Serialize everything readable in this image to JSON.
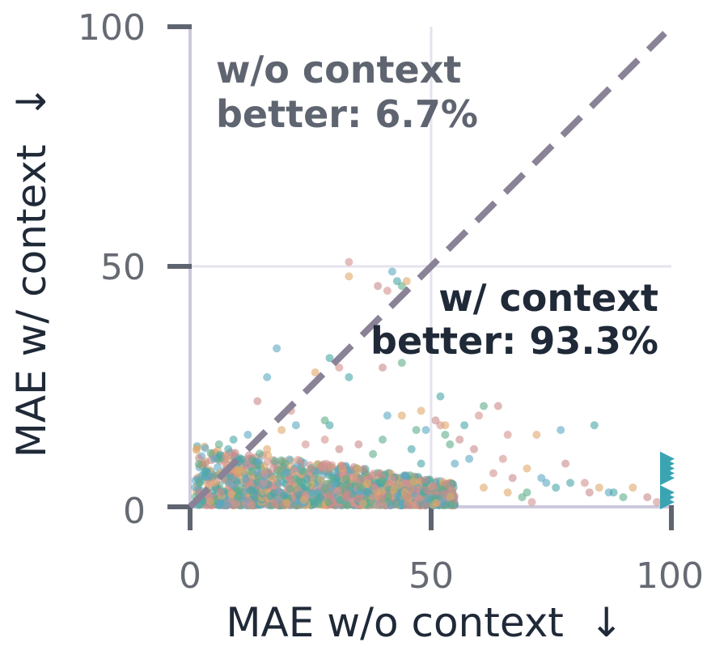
{
  "chart_data": {
    "type": "scatter",
    "xlabel": "MAE w/o context  ↓",
    "ylabel": "MAE w/ context  ↓",
    "xlim": [
      0,
      100
    ],
    "ylim": [
      0,
      100
    ],
    "xticks": [
      "0",
      "50",
      "100"
    ],
    "yticks": [
      "0",
      "50",
      "100"
    ],
    "grid": true,
    "diagonal": "y = x dashed",
    "annotations": {
      "upper_line1": "w/o context",
      "upper_line2": "better: 6.7%",
      "lower_line1": "w/ context",
      "lower_line2": "better: 93.3%"
    },
    "colors": {
      "axis": "#cdc9dc",
      "tick": "#5f6570",
      "grid": "#e6e3ef",
      "diagonal": "#8a8296",
      "upper_text": "#5f6570",
      "lower_text": "#1f2937",
      "points": [
        "#d4928f",
        "#e0a96b",
        "#5da8c4",
        "#4aa7a8",
        "#5fae8b",
        "#c98b8b"
      ],
      "overflow": "#3aa4b3"
    },
    "points": [
      [
        33,
        51
      ],
      [
        33,
        48
      ],
      [
        42,
        49
      ],
      [
        43,
        47
      ],
      [
        44,
        46
      ],
      [
        39,
        46
      ],
      [
        41,
        45
      ],
      [
        45,
        47
      ],
      [
        18,
        33
      ],
      [
        29,
        31
      ],
      [
        44,
        30
      ],
      [
        40,
        29
      ],
      [
        31,
        29
      ],
      [
        26,
        28
      ],
      [
        16,
        27
      ],
      [
        33,
        27
      ],
      [
        28,
        18
      ],
      [
        14,
        22
      ],
      [
        21,
        20
      ],
      [
        48,
        20
      ],
      [
        41,
        19
      ],
      [
        52,
        23
      ],
      [
        61,
        21
      ],
      [
        64,
        21
      ],
      [
        60,
        19
      ],
      [
        44,
        19
      ],
      [
        22,
        17
      ],
      [
        29,
        17
      ],
      [
        47,
        16
      ],
      [
        51,
        18
      ],
      [
        52,
        17
      ],
      [
        53,
        17
      ],
      [
        49,
        16
      ],
      [
        57,
        17
      ],
      [
        53,
        15
      ],
      [
        56,
        14
      ],
      [
        66,
        15
      ],
      [
        72,
        15
      ],
      [
        77,
        16
      ],
      [
        84,
        17
      ],
      [
        54,
        13
      ],
      [
        59,
        12
      ],
      [
        65,
        10
      ],
      [
        70,
        8
      ],
      [
        58,
        10
      ],
      [
        46,
        12
      ],
      [
        40,
        14
      ],
      [
        35,
        13
      ],
      [
        28,
        14
      ],
      [
        19,
        16
      ],
      [
        12,
        15
      ],
      [
        9,
        14
      ],
      [
        6,
        13
      ],
      [
        78,
        9
      ],
      [
        82,
        5
      ],
      [
        85,
        4
      ],
      [
        87,
        3
      ],
      [
        88,
        3
      ],
      [
        90,
        2
      ],
      [
        95,
        2
      ],
      [
        97,
        1
      ],
      [
        92,
        4
      ],
      [
        74,
        5
      ],
      [
        79,
        5
      ],
      [
        70,
        3
      ],
      [
        67,
        6
      ],
      [
        63,
        7
      ],
      [
        61,
        4
      ],
      [
        73,
        6
      ],
      [
        76,
        4
      ],
      [
        69,
        2
      ],
      [
        83,
        3
      ],
      [
        71,
        1
      ],
      [
        66,
        3
      ],
      [
        55,
        9
      ],
      [
        48,
        9
      ],
      [
        38,
        11
      ],
      [
        31,
        12
      ],
      [
        24,
        13
      ],
      [
        16,
        12
      ],
      [
        5,
        10
      ],
      [
        3,
        7
      ],
      [
        2,
        5
      ],
      [
        2,
        3
      ],
      [
        4,
        2
      ]
    ],
    "overflow_markers": [
      10,
      9,
      8,
      7,
      6,
      3,
      2,
      1
    ],
    "dense_cluster": {
      "x_min": 0,
      "x_max": 55,
      "y_min": 0,
      "y_max": 13,
      "count": 1500,
      "seed": 7
    }
  }
}
